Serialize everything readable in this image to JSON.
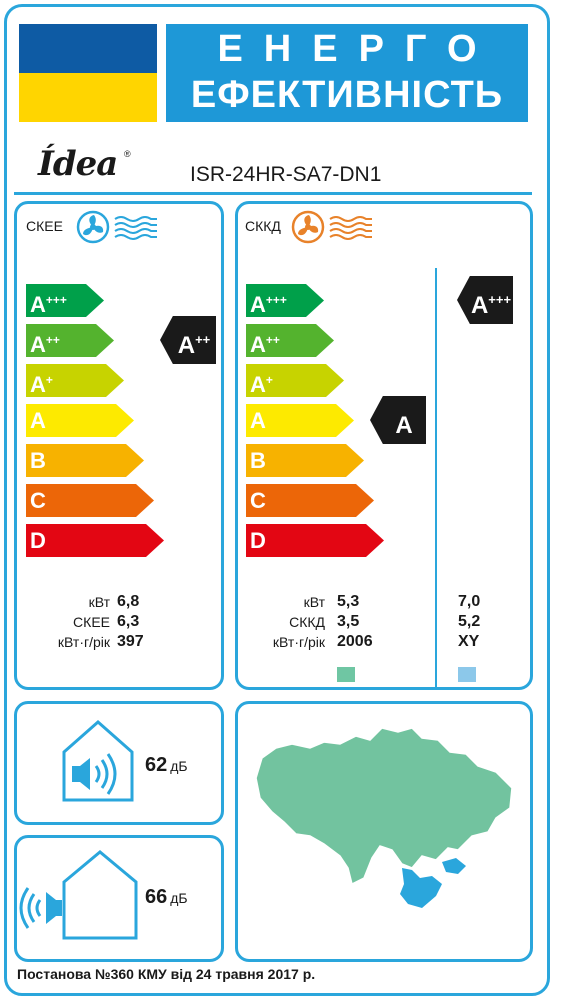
{
  "header": {
    "title_line1": "ЕНЕРГО",
    "title_line2": "ЕФЕКТИВНІСТЬ",
    "brand": "Ídea",
    "brand_mark": "®",
    "model": "ISR-24HR-SA7-DN1"
  },
  "colors": {
    "frame": "#2aa6dc",
    "flag_blue": "#0e5ba4",
    "flag_yellow": "#ffd500",
    "title_bg": "#1e98d7",
    "fan_heat": "#e8822a",
    "warmer_swatch": "#6fc6a3",
    "colder_swatch": "#8cc8ea",
    "map_land": "#72c39f",
    "map_sea": "#2aa6dc"
  },
  "scale": [
    {
      "letter": "A",
      "plus": "+++",
      "color": "#00a04a"
    },
    {
      "letter": "A",
      "plus": "++",
      "color": "#54b32e"
    },
    {
      "letter": "A",
      "plus": "+",
      "color": "#c7d300"
    },
    {
      "letter": "A",
      "plus": "",
      "color": "#fdea00"
    },
    {
      "letter": "B",
      "plus": "",
      "color": "#f7b200"
    },
    {
      "letter": "C",
      "plus": "",
      "color": "#ec6608"
    },
    {
      "letter": "D",
      "plus": "",
      "color": "#e30613"
    }
  ],
  "cooling": {
    "label": "СКЕЕ",
    "icon": "fan-cooling-icon",
    "class_letter": "A",
    "class_plus": "++",
    "class_index": 1,
    "specs": [
      {
        "label": "кВт",
        "value": "6,8"
      },
      {
        "label": "СКЕЕ",
        "value": "6,3"
      },
      {
        "label": "кВт·г/рік",
        "value": "397"
      }
    ]
  },
  "heating": {
    "label": "СККД",
    "icon": "fan-heating-icon",
    "class_letter": "A",
    "class_plus": "",
    "class_index": 3,
    "alt_class_letter": "A",
    "alt_class_plus": "+++",
    "alt_class_index": 0,
    "specs": [
      {
        "label": "кВт",
        "value": "5,3",
        "alt": "7,0"
      },
      {
        "label": "СККД",
        "value": "3,5",
        "alt": "5,2"
      },
      {
        "label": "кВт·г/рік",
        "value": "2006",
        "alt": "XY"
      }
    ]
  },
  "noise": {
    "indoor_db": "62",
    "outdoor_db": "66",
    "unit": "дБ",
    "indoor_icon": "indoor-speaker-icon",
    "outdoor_icon": "outdoor-speaker-icon"
  },
  "map_icon": "ukraine-map-icon",
  "footer": "Постанова №360 КМУ від 24 травня 2017 р."
}
